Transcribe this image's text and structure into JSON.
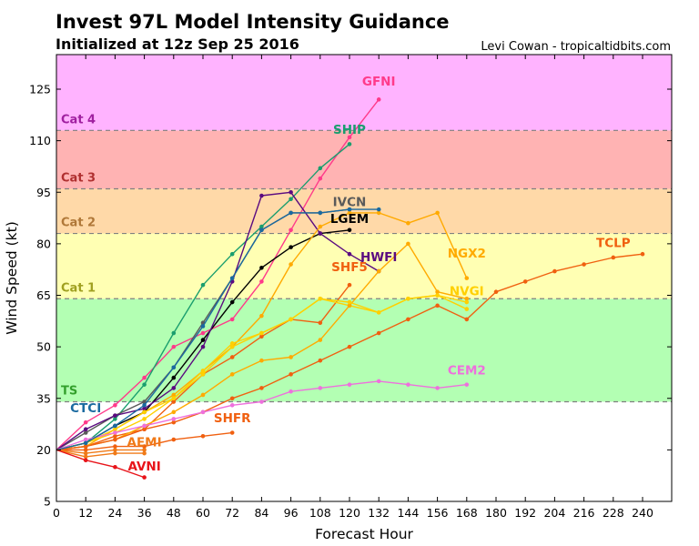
{
  "header": {
    "title": "Invest 97L Model Intensity Guidance",
    "subtitle": "Initialized at 12z Sep 25 2016",
    "credit": "Levi Cowan - tropicaltidbits.com"
  },
  "chart_data": {
    "type": "line",
    "title": "Invest 97L Model Intensity Guidance",
    "subtitle": "Initialized at 12z Sep 25 2016",
    "xlabel": "Forecast Hour",
    "ylabel": "Wind Speed (kt)",
    "xlim": [
      0,
      252
    ],
    "ylim": [
      5,
      137
    ],
    "xticks": [
      0,
      12,
      24,
      36,
      48,
      60,
      72,
      84,
      96,
      108,
      120,
      132,
      144,
      156,
      168,
      180,
      192,
      204,
      216,
      228,
      240
    ],
    "yticks": [
      5,
      20,
      35,
      50,
      65,
      80,
      95,
      110,
      125
    ],
    "grid": false,
    "legend": "none (inline labels at line ends)",
    "bands": [
      {
        "name": "TS",
        "from": 34,
        "to": 64,
        "color": "#b3ffb3",
        "label_color": "#33a02c"
      },
      {
        "name": "Cat 1",
        "from": 64,
        "to": 83,
        "color": "#ffffb3",
        "label_color": "#a0a020"
      },
      {
        "name": "Cat 2",
        "from": 83,
        "to": 96,
        "color": "#ffd9a8",
        "label_color": "#b07838"
      },
      {
        "name": "Cat 3",
        "from": 96,
        "to": 113,
        "color": "#ffb3b3",
        "label_color": "#b03030"
      },
      {
        "name": "Cat 4",
        "from": 113,
        "to": 137,
        "color": "#ffb3ff",
        "label_color": "#a020a0"
      }
    ],
    "series": [
      {
        "name": "GFNI",
        "color": "#ff3a8a",
        "label_at": [
          132,
          126
        ],
        "x": [
          0,
          12,
          24,
          36,
          48,
          60,
          72,
          84,
          96,
          108,
          120,
          132
        ],
        "values": [
          20,
          28,
          33,
          41,
          50,
          54,
          58,
          69,
          84,
          99,
          111,
          122
        ]
      },
      {
        "name": "SHIP",
        "color": "#1a9e6e",
        "label_at": [
          120,
          112
        ],
        "x": [
          0,
          12,
          24,
          36,
          48,
          60,
          72,
          84,
          96,
          108,
          120
        ],
        "values": [
          20,
          22,
          29,
          39,
          54,
          68,
          77,
          85,
          93,
          102,
          109
        ]
      },
      {
        "name": "IVCN",
        "color": "#5a5a5a",
        "label_at": [
          120,
          91
        ],
        "x": [
          0,
          12,
          24,
          36,
          48,
          60,
          72,
          84,
          96,
          108,
          120
        ],
        "values": [
          20,
          25,
          30,
          34,
          44,
          57,
          70,
          84,
          89,
          89,
          90
        ]
      },
      {
        "name": "LGEM",
        "color": "#000000",
        "label_at": [
          120,
          86
        ],
        "x": [
          0,
          12,
          24,
          36,
          48,
          60,
          72,
          84,
          96,
          108,
          120
        ],
        "values": [
          20,
          22,
          27,
          31,
          41,
          52,
          63,
          73,
          79,
          83,
          84
        ]
      },
      {
        "name": "HWFI",
        "color": "#5a0a80",
        "label_at": [
          132,
          75
        ],
        "x": [
          0,
          12,
          24,
          36,
          48,
          60,
          72,
          84,
          96,
          108,
          120,
          132
        ],
        "values": [
          20,
          26,
          30,
          32,
          38,
          50,
          69,
          94,
          95,
          83,
          77,
          72
        ]
      },
      {
        "name": "SHF5",
        "color": "#f06010",
        "label_at": [
          120,
          72
        ],
        "x": [
          0,
          12,
          24,
          36,
          48,
          60,
          72,
          84,
          96,
          108,
          120
        ],
        "values": [
          20,
          21,
          24,
          26,
          34,
          42,
          47,
          53,
          58,
          57,
          68
        ]
      },
      {
        "name": "NGX2",
        "color": "#ffaa00",
        "label_at": [
          168,
          76
        ],
        "x": [
          0,
          12,
          24,
          36,
          48,
          60,
          72,
          84,
          96,
          108,
          120,
          132,
          144,
          156,
          168
        ],
        "values": [
          20,
          21,
          26,
          31,
          36,
          43,
          50,
          59,
          74,
          85,
          89,
          89,
          86,
          89,
          70
        ]
      },
      {
        "name": "NVGI",
        "color": "#ffd000",
        "label_at": [
          168,
          65
        ],
        "x": [
          0,
          12,
          24,
          36,
          48,
          60,
          72,
          84,
          96,
          108,
          120,
          132,
          144,
          156,
          168
        ],
        "values": [
          20,
          22,
          26,
          31,
          35,
          42,
          50,
          54,
          58,
          64,
          62,
          60,
          64,
          65,
          61
        ]
      },
      {
        "name": "NGX2 (aux)",
        "color": "#ffaa00",
        "label_at": null,
        "x": [
          0,
          12,
          24,
          36,
          48,
          60,
          72,
          84,
          96,
          108,
          120,
          132,
          144,
          156,
          168
        ],
        "values": [
          20,
          21,
          23,
          27,
          31,
          36,
          42,
          46,
          47,
          52,
          62,
          72,
          80,
          66,
          64
        ]
      },
      {
        "name": "NVGI (aux)",
        "color": "#ffd000",
        "label_at": null,
        "x": [
          0,
          12,
          24,
          36,
          48,
          60,
          72,
          84,
          96,
          108,
          120,
          132,
          144,
          156,
          168
        ],
        "values": [
          20,
          22,
          25,
          29,
          35,
          43,
          51,
          54,
          58,
          64,
          63,
          60,
          64,
          65,
          63
        ]
      },
      {
        "name": "TCLP",
        "color": "#f06010",
        "label_at": [
          228,
          79
        ],
        "x": [
          0,
          12,
          24,
          36,
          48,
          60,
          72,
          84,
          96,
          108,
          120,
          132,
          144,
          156,
          168,
          180,
          192,
          204,
          216,
          228,
          240
        ],
        "values": [
          20,
          21,
          23,
          26,
          28,
          31,
          35,
          38,
          42,
          46,
          50,
          54,
          58,
          62,
          58,
          66,
          69,
          72,
          74,
          76,
          77
        ]
      },
      {
        "name": "CEM2",
        "color": "#ee70dd",
        "label_at": [
          168,
          42
        ],
        "x": [
          0,
          12,
          24,
          36,
          48,
          60,
          72,
          84,
          96,
          108,
          120,
          132,
          144,
          156,
          168
        ],
        "values": [
          20,
          23,
          25,
          27,
          29,
          31,
          33,
          34,
          37,
          38,
          39,
          40,
          39,
          38,
          39
        ]
      },
      {
        "name": "CTCI",
        "color": "#1a6aa0",
        "label_at": [
          12,
          31
        ],
        "x": [
          0,
          12,
          24,
          36,
          48,
          60,
          72,
          84,
          96,
          108,
          120,
          132
        ],
        "values": [
          20,
          22,
          27,
          33,
          44,
          56,
          70,
          84,
          89,
          89,
          90,
          90
        ]
      },
      {
        "name": "SHFR",
        "color": "#f06010",
        "label_at": [
          72,
          28
        ],
        "x": [
          0,
          12,
          24,
          36,
          48,
          60,
          72
        ],
        "values": [
          20,
          20,
          21,
          21,
          23,
          24,
          25
        ]
      },
      {
        "name": "AEMI",
        "color": "#f07a18",
        "label_at": [
          36,
          21
        ],
        "x": [
          0,
          12,
          24,
          36
        ],
        "values": [
          20,
          19,
          20,
          20
        ]
      },
      {
        "name": "AEMI (aux)",
        "color": "#f07a18",
        "label_at": null,
        "x": [
          0,
          12,
          24,
          36
        ],
        "values": [
          20,
          18,
          19,
          19
        ]
      },
      {
        "name": "AVNI",
        "color": "#e8141a",
        "label_at": [
          36,
          14
        ],
        "x": [
          0,
          12,
          24,
          36
        ],
        "values": [
          20,
          17,
          15,
          12
        ]
      }
    ]
  }
}
